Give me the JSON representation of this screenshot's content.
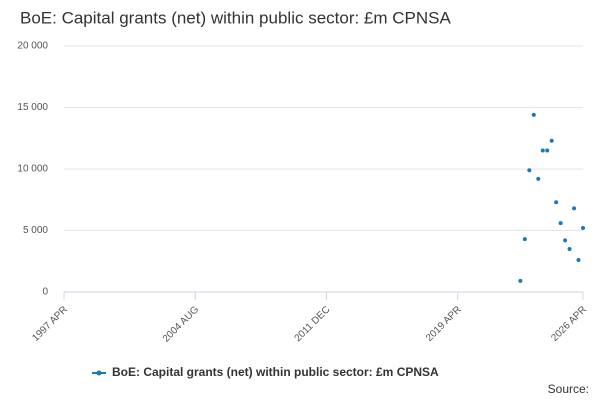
{
  "chart_data": {
    "type": "scatter",
    "title": "BoE: Capital grants (net) within public sector: £m CPNSA",
    "source_label": "Source:",
    "x": [
      "2022 OCT",
      "2023 JAN",
      "2023 APR",
      "2023 JUL",
      "2023 OCT",
      "2024 JAN",
      "2024 APR",
      "2024 JUL",
      "2024 OCT",
      "2025 JAN",
      "2025 APR",
      "2025 JUL",
      "2025 OCT",
      "2026 JAN",
      "2026 APR"
    ],
    "series": [
      {
        "name": "BoE: Capital grants (net) within public sector: £m CPNSA",
        "color": "#1a7ab5",
        "values": [
          900,
          4300,
          9900,
          14400,
          9200,
          11500,
          11500,
          12300,
          7300,
          5600,
          4200,
          3500,
          6800,
          2600,
          5200
        ]
      }
    ],
    "xlim": [
      "1997 APR",
      "2026 APR"
    ],
    "xticks": [
      "1997 APR",
      "2004 AUG",
      "2011 DEC",
      "2019 APR",
      "2026 APR"
    ],
    "ylim": [
      0,
      20000
    ],
    "yticks": [
      0,
      {
        "value": 5000,
        "label": "5 000"
      },
      {
        "value": 10000,
        "label": "10 000"
      },
      {
        "value": 15000,
        "label": "15 000"
      },
      {
        "value": 20000,
        "label": "20 000"
      }
    ],
    "grid": true,
    "legend": "bottom"
  }
}
